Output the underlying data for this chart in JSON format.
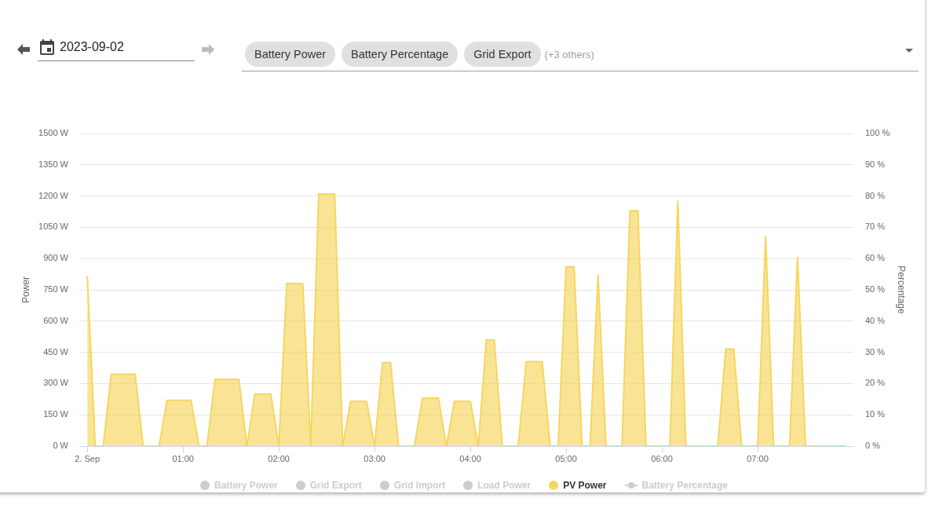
{
  "chart_data": {
    "type": "area",
    "annotations": [
      "2023-09-02",
      "Battery Power",
      "Battery Percentage",
      "Grid Export",
      "(+3 others)"
    ],
    "ylabel": "Power",
    "y2label": "Percentage",
    "x": [
      "2023-09-02T00:00",
      "2023-09-02T00:05",
      "2023-09-02T00:10",
      "2023-09-02T00:15",
      "2023-09-02T00:20",
      "2023-09-02T00:25",
      "2023-09-02T00:30",
      "2023-09-02T00:35",
      "2023-09-02T00:40",
      "2023-09-02T00:45",
      "2023-09-02T00:50",
      "2023-09-02T00:55",
      "2023-09-02T01:00",
      "2023-09-02T01:05",
      "2023-09-02T01:10",
      "2023-09-02T01:15",
      "2023-09-02T01:20",
      "2023-09-02T01:25",
      "2023-09-02T01:30",
      "2023-09-02T01:35",
      "2023-09-02T01:40",
      "2023-09-02T01:45",
      "2023-09-02T01:50",
      "2023-09-02T01:55",
      "2023-09-02T02:00",
      "2023-09-02T02:05",
      "2023-09-02T02:10",
      "2023-09-02T02:15",
      "2023-09-02T02:20",
      "2023-09-02T02:25",
      "2023-09-02T02:30",
      "2023-09-02T02:35",
      "2023-09-02T02:40",
      "2023-09-02T02:45",
      "2023-09-02T02:50",
      "2023-09-02T02:55",
      "2023-09-02T03:00",
      "2023-09-02T03:05",
      "2023-09-02T03:10",
      "2023-09-02T03:15",
      "2023-09-02T03:20",
      "2023-09-02T03:25",
      "2023-09-02T03:30",
      "2023-09-02T03:35",
      "2023-09-02T03:40",
      "2023-09-02T03:45",
      "2023-09-02T03:50",
      "2023-09-02T03:55",
      "2023-09-02T04:00",
      "2023-09-02T04:05",
      "2023-09-02T04:10",
      "2023-09-02T04:15",
      "2023-09-02T04:20",
      "2023-09-02T04:25",
      "2023-09-02T04:30",
      "2023-09-02T04:35",
      "2023-09-02T04:40",
      "2023-09-02T04:45",
      "2023-09-02T04:50",
      "2023-09-02T04:55",
      "2023-09-02T05:00",
      "2023-09-02T05:05",
      "2023-09-02T05:10",
      "2023-09-02T05:15",
      "2023-09-02T05:20",
      "2023-09-02T05:25",
      "2023-09-02T05:30",
      "2023-09-02T05:35",
      "2023-09-02T05:40",
      "2023-09-02T05:45",
      "2023-09-02T05:50",
      "2023-09-02T05:55",
      "2023-09-02T06:00",
      "2023-09-02T06:05",
      "2023-09-02T06:10",
      "2023-09-02T06:15",
      "2023-09-02T06:20",
      "2023-09-02T06:25",
      "2023-09-02T06:30",
      "2023-09-02T06:35",
      "2023-09-02T06:40",
      "2023-09-02T06:45",
      "2023-09-02T06:50",
      "2023-09-02T06:55",
      "2023-09-02T07:00",
      "2023-09-02T07:05",
      "2023-09-02T07:10",
      "2023-09-02T07:15",
      "2023-09-02T07:20",
      "2023-09-02T07:25",
      "2023-09-02T07:30",
      "2023-09-02T07:35",
      "2023-09-02T07:40",
      "2023-09-02T07:45",
      "2023-09-02T07:50",
      "2023-09-02T07:55"
    ],
    "series": [
      {
        "name": "Battery Power",
        "color": "#cccccc",
        "values": [
          null,
          null,
          null,
          null,
          null,
          null,
          null,
          null,
          null,
          null,
          null,
          null,
          null,
          null,
          null,
          null,
          null,
          null,
          null,
          null,
          null,
          null,
          null,
          null,
          null,
          null,
          null,
          null,
          null,
          null,
          null,
          null,
          null,
          null,
          null,
          null,
          null,
          null,
          null,
          null,
          null,
          null,
          null,
          null,
          null,
          null,
          null,
          null,
          null,
          null,
          null,
          null,
          null,
          null,
          null,
          null,
          null,
          null,
          null,
          null,
          null,
          null,
          null,
          null,
          null,
          null,
          null,
          null,
          null,
          null,
          null,
          null,
          null,
          null,
          null,
          null,
          null,
          null,
          null,
          null,
          null,
          null,
          null,
          null,
          null,
          null,
          null,
          null,
          null,
          null,
          null,
          null,
          null,
          null,
          null,
          null
        ]
      },
      {
        "name": "Grid Export",
        "color": "#cccccc",
        "values": [
          null,
          null,
          null,
          null,
          null,
          null,
          null,
          null,
          null,
          null,
          null,
          null,
          null,
          null,
          null,
          null,
          null,
          null,
          null,
          null,
          null,
          null,
          null,
          null,
          null,
          null,
          null,
          null,
          null,
          null,
          null,
          null,
          null,
          null,
          null,
          null,
          null,
          null,
          null,
          null,
          null,
          null,
          null,
          null,
          null,
          null,
          null,
          null,
          null,
          null,
          null,
          null,
          null,
          null,
          null,
          null,
          null,
          null,
          null,
          null,
          null,
          null,
          null,
          null,
          null,
          null,
          null,
          null,
          null,
          null,
          null,
          null,
          null,
          null,
          null,
          null,
          null,
          null,
          null,
          null,
          null,
          null,
          null,
          null,
          null,
          null,
          null,
          null,
          null,
          null,
          null,
          null,
          null,
          null,
          null,
          null
        ]
      },
      {
        "name": "Grid Import",
        "color": "#cccccc",
        "values": [
          null,
          null,
          null,
          null,
          null,
          null,
          null,
          null,
          null,
          null,
          null,
          null,
          null,
          null,
          null,
          null,
          null,
          null,
          null,
          null,
          null,
          null,
          null,
          null,
          null,
          null,
          null,
          null,
          null,
          null,
          null,
          null,
          null,
          null,
          null,
          null,
          null,
          null,
          null,
          null,
          null,
          null,
          null,
          null,
          null,
          null,
          null,
          null,
          null,
          null,
          null,
          null,
          null,
          null,
          null,
          null,
          null,
          null,
          null,
          null,
          null,
          null,
          null,
          null,
          null,
          null,
          null,
          null,
          null,
          null,
          null,
          null,
          null,
          null,
          null,
          null,
          null,
          null,
          null,
          null,
          null,
          null,
          null,
          null,
          null,
          null,
          null,
          null,
          null,
          null,
          null,
          null,
          null,
          null,
          null,
          null
        ]
      },
      {
        "name": "Load Power",
        "color": "#cccccc",
        "values": [
          null,
          null,
          null,
          null,
          null,
          null,
          null,
          null,
          null,
          null,
          null,
          null,
          null,
          null,
          null,
          null,
          null,
          null,
          null,
          null,
          null,
          null,
          null,
          null,
          null,
          null,
          null,
          null,
          null,
          null,
          null,
          null,
          null,
          null,
          null,
          null,
          null,
          null,
          null,
          null,
          null,
          null,
          null,
          null,
          null,
          null,
          null,
          null,
          null,
          null,
          null,
          null,
          null,
          null,
          null,
          null,
          null,
          null,
          null,
          null,
          null,
          null,
          null,
          null,
          null,
          null,
          null,
          null,
          null,
          null,
          null,
          null,
          null,
          null,
          null,
          null,
          null,
          null,
          null,
          null,
          null,
          null,
          null,
          null,
          null,
          null,
          null,
          null,
          null,
          null,
          null,
          null,
          null,
          null,
          null,
          null
        ]
      },
      {
        "name": "PV Power",
        "color": "#f6d65e",
        "values": [
          815,
          0,
          0,
          345,
          345,
          345,
          345,
          0,
          0,
          0,
          220,
          220,
          220,
          220,
          0,
          0,
          320,
          320,
          320,
          320,
          0,
          250,
          250,
          250,
          0,
          780,
          780,
          780,
          0,
          1210,
          1210,
          1210,
          0,
          215,
          215,
          215,
          0,
          400,
          400,
          0,
          0,
          0,
          230,
          230,
          230,
          0,
          215,
          215,
          215,
          0,
          510,
          510,
          0,
          0,
          0,
          405,
          405,
          405,
          0,
          0,
          860,
          860,
          0,
          0,
          820,
          0,
          0,
          0,
          1130,
          1130,
          0,
          0,
          0,
          0,
          1175,
          0,
          0,
          0,
          0,
          0,
          465,
          465,
          0,
          0,
          0,
          1005,
          0,
          0,
          0,
          905,
          0,
          0,
          0,
          0,
          0,
          0
        ]
      },
      {
        "name": "Battery Percentage",
        "type": "line",
        "axis": "y2",
        "marker": "circle",
        "color": "#cccccc",
        "values": [
          null,
          null,
          null,
          null,
          null,
          null,
          null,
          null,
          null,
          null,
          null,
          null,
          null,
          null,
          null,
          null,
          null,
          null,
          null,
          null,
          null,
          null,
          null,
          null,
          null,
          null,
          null,
          null,
          null,
          null,
          null,
          null,
          null,
          null,
          null,
          null,
          null,
          null,
          null,
          null,
          null,
          null,
          null,
          null,
          null,
          null,
          null,
          null,
          null,
          null,
          null,
          null,
          null,
          null,
          null,
          null,
          null,
          null,
          null,
          null,
          null,
          null,
          null,
          null,
          null,
          null,
          null,
          null,
          null,
          null,
          null,
          null,
          null,
          null,
          null,
          null,
          null,
          null,
          null,
          null,
          null,
          null,
          null,
          null,
          null,
          null,
          null,
          null,
          null,
          null,
          null,
          null,
          null,
          null,
          null,
          null
        ]
      }
    ],
    "xlim": [
      "2023-09-01T23:55",
      "2023-09-02T08:00"
    ],
    "xticks": [
      {
        "value": "2023-09-02T00:00",
        "label": "2. Sep"
      },
      {
        "value": "2023-09-02T01:00",
        "label": "01:00"
      },
      {
        "value": "2023-09-02T02:00",
        "label": "02:00"
      },
      {
        "value": "2023-09-02T03:00",
        "label": "03:00"
      },
      {
        "value": "2023-09-02T04:00",
        "label": "04:00"
      },
      {
        "value": "2023-09-02T05:00",
        "label": "05:00"
      },
      {
        "value": "2023-09-02T06:00",
        "label": "06:00"
      },
      {
        "value": "2023-09-02T07:00",
        "label": "07:00"
      }
    ],
    "ylim": [
      0,
      1500
    ],
    "yticks": [
      {
        "value": 0,
        "label": "0 W"
      },
      {
        "value": 150,
        "label": "150 W"
      },
      {
        "value": 300,
        "label": "300 W"
      },
      {
        "value": 450,
        "label": "450 W"
      },
      {
        "value": 600,
        "label": "600 W"
      },
      {
        "value": 750,
        "label": "750 W"
      },
      {
        "value": 900,
        "label": "900 W"
      },
      {
        "value": 1050,
        "label": "1050 W"
      },
      {
        "value": 1200,
        "label": "1200 W"
      },
      {
        "value": 1350,
        "label": "1350 W"
      },
      {
        "value": 1500,
        "label": "1500 W"
      }
    ],
    "y2lim": [
      0,
      100
    ],
    "y2ticks": [
      {
        "value": 0,
        "label": "0 %"
      },
      {
        "value": 10,
        "label": "10 %"
      },
      {
        "value": 20,
        "label": "20 %"
      },
      {
        "value": 30,
        "label": "30 %"
      },
      {
        "value": 40,
        "label": "40 %"
      },
      {
        "value": 50,
        "label": "50 %"
      },
      {
        "value": 60,
        "label": "60 %"
      },
      {
        "value": 70,
        "label": "70 %"
      },
      {
        "value": 80,
        "label": "80 %"
      },
      {
        "value": 90,
        "label": "90 %"
      },
      {
        "value": 100,
        "label": "100 %"
      }
    ],
    "grid": "y",
    "legend": "bottom"
  }
}
